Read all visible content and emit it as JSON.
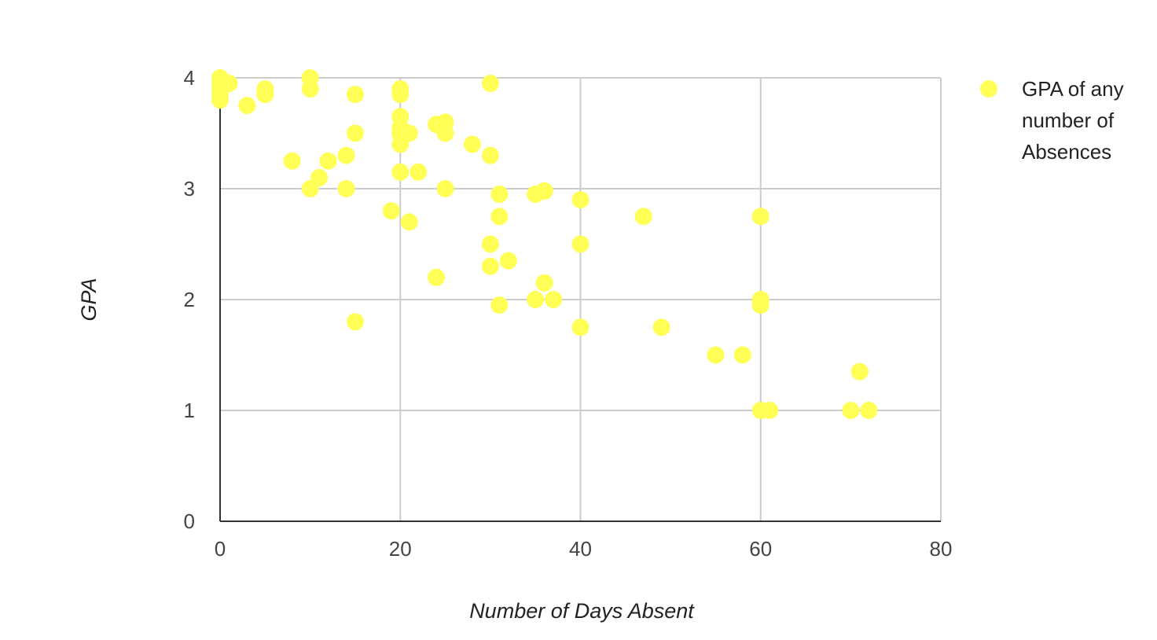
{
  "chart_data": {
    "type": "scatter",
    "title": "",
    "xlabel": "Number of Days Absent",
    "ylabel": "GPA",
    "xlim": [
      0,
      80
    ],
    "ylim": [
      0,
      4
    ],
    "x_ticks": [
      "0",
      "20",
      "40",
      "60",
      "80"
    ],
    "y_ticks": [
      "0",
      "1",
      "2",
      "3",
      "4"
    ],
    "grid": true,
    "legend_position": "right",
    "series": [
      {
        "name": "GPA of any number of Absences",
        "legend_lines": [
          "GPA of any",
          "number of",
          "Absences"
        ],
        "color": "#ffff55",
        "points": [
          [
            0,
            4.0
          ],
          [
            0,
            3.95
          ],
          [
            0,
            3.9
          ],
          [
            0,
            3.85
          ],
          [
            0,
            3.8
          ],
          [
            1,
            3.95
          ],
          [
            3,
            3.75
          ],
          [
            5,
            3.9
          ],
          [
            5,
            3.85
          ],
          [
            8,
            3.25
          ],
          [
            10,
            4.0
          ],
          [
            10,
            3.9
          ],
          [
            10,
            3.0
          ],
          [
            11,
            3.1
          ],
          [
            12,
            3.25
          ],
          [
            14,
            3.3
          ],
          [
            14,
            3.0
          ],
          [
            15,
            3.85
          ],
          [
            15,
            3.5
          ],
          [
            15,
            1.8
          ],
          [
            19,
            2.8
          ],
          [
            20,
            3.9
          ],
          [
            20,
            3.85
          ],
          [
            20,
            3.65
          ],
          [
            20,
            3.55
          ],
          [
            20,
            3.5
          ],
          [
            20,
            3.4
          ],
          [
            20,
            3.15
          ],
          [
            21,
            3.5
          ],
          [
            21,
            2.7
          ],
          [
            22,
            3.15
          ],
          [
            24,
            3.58
          ],
          [
            24,
            2.2
          ],
          [
            25,
            3.6
          ],
          [
            25,
            3.5
          ],
          [
            25,
            3.0
          ],
          [
            28,
            3.4
          ],
          [
            30,
            3.95
          ],
          [
            30,
            3.3
          ],
          [
            30,
            2.5
          ],
          [
            30,
            2.3
          ],
          [
            31,
            2.95
          ],
          [
            31,
            2.75
          ],
          [
            31,
            1.95
          ],
          [
            32,
            2.35
          ],
          [
            35,
            2.95
          ],
          [
            35,
            2.0
          ],
          [
            36,
            2.98
          ],
          [
            36,
            2.15
          ],
          [
            37,
            2.0
          ],
          [
            40,
            2.9
          ],
          [
            40,
            2.5
          ],
          [
            40,
            1.75
          ],
          [
            47,
            2.75
          ],
          [
            49,
            1.75
          ],
          [
            55,
            1.5
          ],
          [
            58,
            1.5
          ],
          [
            60,
            2.75
          ],
          [
            60,
            2.0
          ],
          [
            60,
            1.95
          ],
          [
            60,
            1.0
          ],
          [
            61,
            1.0
          ],
          [
            70,
            1.0
          ],
          [
            71,
            1.35
          ],
          [
            72,
            1.0
          ]
        ]
      }
    ]
  }
}
